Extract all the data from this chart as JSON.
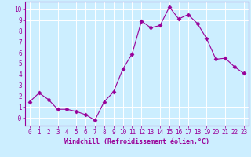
{
  "x": [
    0,
    1,
    2,
    3,
    4,
    5,
    6,
    7,
    8,
    9,
    10,
    11,
    12,
    13,
    14,
    15,
    16,
    17,
    18,
    19,
    20,
    21,
    22,
    23
  ],
  "y": [
    1.5,
    2.3,
    1.7,
    0.8,
    0.8,
    0.6,
    0.3,
    -0.2,
    1.5,
    2.4,
    4.5,
    5.9,
    8.9,
    8.3,
    8.5,
    10.2,
    9.1,
    9.5,
    8.7,
    7.3,
    5.4,
    5.5,
    4.7,
    4.1
  ],
  "xlabel": "Windchill (Refroidissement éolien,°C)",
  "ylim": [
    -0.7,
    10.7
  ],
  "xlim": [
    -0.5,
    23.5
  ],
  "line_color": "#990099",
  "marker": "D",
  "marker_size": 2.5,
  "bg_color": "#cceeff",
  "grid_color": "#aaddcc",
  "axis_color": "#990099",
  "tick_color": "#990099",
  "label_color": "#990099",
  "yticks": [
    0,
    1,
    2,
    3,
    4,
    5,
    6,
    7,
    8,
    9,
    10
  ],
  "ytick_labels": [
    "-0",
    "1",
    "2",
    "3",
    "4",
    "5",
    "6",
    "7",
    "8",
    "9",
    "10"
  ],
  "xticks": [
    0,
    1,
    2,
    3,
    4,
    5,
    6,
    7,
    8,
    9,
    10,
    11,
    12,
    13,
    14,
    15,
    16,
    17,
    18,
    19,
    20,
    21,
    22,
    23
  ],
  "tick_fontsize": 5.5,
  "xlabel_fontsize": 6.0
}
